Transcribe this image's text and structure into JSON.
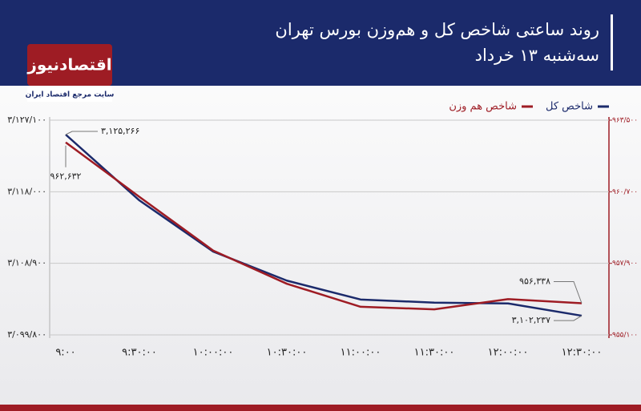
{
  "header": {
    "logo": "اقتصادنیوز",
    "tagline": "سایت مرجع اقتصاد ایران"
  },
  "chart_data": {
    "type": "line",
    "title": "روند ساعتی شاخص کل و هم‌وزن بورس تهران",
    "subtitle": "سه‌شنبه ۱۳ خرداد",
    "categories": [
      "۹:۰۰",
      "۹:۳۰:۰۰",
      "۱۰:۰۰:۰۰",
      "۱۰:۳۰:۰۰",
      "۱۱:۰۰:۰۰",
      "۱۱:۳۰:۰۰",
      "۱۲:۰۰:۰۰",
      "۱۲:۳۰:۰۰"
    ],
    "series": [
      {
        "name": "شاخص کل",
        "color": "#1b2a6b",
        "values": [
          3125266,
          3116900,
          3110400,
          3106700,
          3104300,
          3103900,
          3103800,
          3102237
        ],
        "value_labels": [
          "۳,۱۲۵,۲۶۶",
          null,
          null,
          null,
          null,
          null,
          null,
          "۳,۱۰۲,۲۳۷"
        ]
      },
      {
        "name": "شاخص هم وزن",
        "color": "#9e1c24",
        "axis": "y2",
        "values": [
          962632,
          960500,
          958400,
          957100,
          956200,
          956100,
          956500,
          956338
        ],
        "value_labels": [
          "۹۶۲,۶۳۲",
          null,
          null,
          null,
          null,
          null,
          null,
          "۹۵۶,۳۳۸"
        ]
      }
    ],
    "ylim": [
      3099800,
      3127100
    ],
    "yticks": [
      {
        "value": 3099800,
        "label": "۳/۰۹۹/۸۰۰"
      },
      {
        "value": 3108900,
        "label": "۳/۱۰۸/۹۰۰"
      },
      {
        "value": 3118000,
        "label": "۳/۱۱۸/۰۰۰"
      },
      {
        "value": 3127100,
        "label": "۳/۱۲۷/۱۰۰"
      }
    ],
    "y2lim": [
      955100,
      963500
    ],
    "y2ticks": [
      {
        "value": 955100,
        "label": "۹۵۵/۱۰۰"
      },
      {
        "value": 957900,
        "label": "۹۵۷/۹۰۰"
      },
      {
        "value": 960700,
        "label": "۹۶۰/۷۰۰"
      },
      {
        "value": 963500,
        "label": "۹۶۳/۵۰۰"
      }
    ],
    "grid": true,
    "legend": "top-right",
    "y2_color": "#9e1c24"
  }
}
